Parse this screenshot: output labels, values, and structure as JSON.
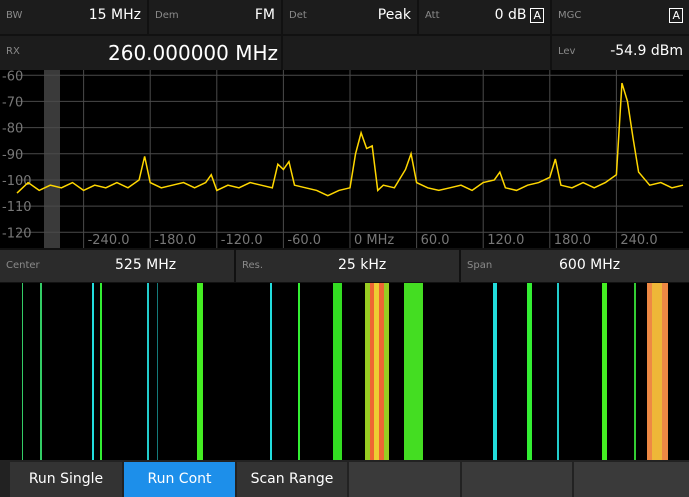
{
  "header": {
    "bw_label": "BW",
    "bw": "15 MHz",
    "dem_label": "Dem",
    "dem": "FM",
    "det_label": "Det",
    "det": "Peak",
    "att_label": "Att",
    "att": "0 dB",
    "att_mode": "A",
    "mgc_label": "MGC",
    "mgc_mode": "A",
    "rx_label": "RX",
    "rx": "260.000000 MHz",
    "lev_label": "Lev",
    "lev": "-54.9 dBm"
  },
  "chart_data": {
    "type": "line",
    "x": [
      -300,
      -290,
      -280,
      -270,
      -260,
      -250,
      -240,
      -230,
      -220,
      -210,
      -200,
      -190,
      -185,
      -180,
      -170,
      -160,
      -150,
      -140,
      -130,
      -125,
      -120,
      -110,
      -100,
      -90,
      -80,
      -70,
      -65,
      -60,
      -55,
      -50,
      -40,
      -30,
      -20,
      -10,
      0,
      5,
      10,
      15,
      20,
      25,
      30,
      40,
      50,
      55,
      60,
      70,
      80,
      90,
      100,
      110,
      120,
      130,
      135,
      140,
      150,
      160,
      170,
      180,
      185,
      190,
      200,
      210,
      220,
      230,
      240,
      245,
      250,
      255,
      260,
      270,
      280,
      290,
      300
    ],
    "series": [
      {
        "color": "#ffd700",
        "values": [
          -105,
          -101,
          -104,
          -102,
          -103,
          -101,
          -104,
          -102,
          -103,
          -101,
          -103,
          -100,
          -91,
          -101,
          -103,
          -102,
          -101,
          -103,
          -101,
          -98,
          -104,
          -102,
          -103,
          -101,
          -102,
          -103,
          -94,
          -96,
          -93,
          -102,
          -103,
          -104,
          -106,
          -104,
          -103,
          -90,
          -82,
          -88,
          -87,
          -104,
          -102,
          -103,
          -96,
          -90,
          -101,
          -103,
          -104,
          -103,
          -102,
          -104,
          -101,
          -100,
          -97,
          -103,
          -104,
          -102,
          -101,
          -99,
          -92,
          -102,
          -103,
          -101,
          -103,
          -101,
          -98,
          -63,
          -70,
          -84,
          -97,
          -102,
          -101,
          -103,
          -102
        ]
      }
    ],
    "xlim": [
      -300,
      300
    ],
    "ylim": [
      -126,
      -58
    ],
    "xticks": [
      {
        "value": -240,
        "label": "-240.0"
      },
      {
        "value": -180,
        "label": "-180.0"
      },
      {
        "value": -120,
        "label": "-120.0"
      },
      {
        "value": -60,
        "label": "-60.0"
      },
      {
        "value": 0,
        "label": "0 MHz"
      },
      {
        "value": 60,
        "label": "60.0"
      },
      {
        "value": 120,
        "label": "120.0"
      },
      {
        "value": 180,
        "label": "180.0"
      },
      {
        "value": 240,
        "label": "240.0"
      }
    ],
    "yticks": [
      -60,
      -70,
      -80,
      -90,
      -100,
      -110,
      -120
    ],
    "grid": true
  },
  "settings": {
    "center_label": "Center",
    "center": "525 MHz",
    "res_label": "Res.",
    "res": "25 kHz",
    "span_label": "Span",
    "span": "600 MHz"
  },
  "softkeys": [
    "Run Single",
    "Run Cont",
    "Scan Range"
  ]
}
